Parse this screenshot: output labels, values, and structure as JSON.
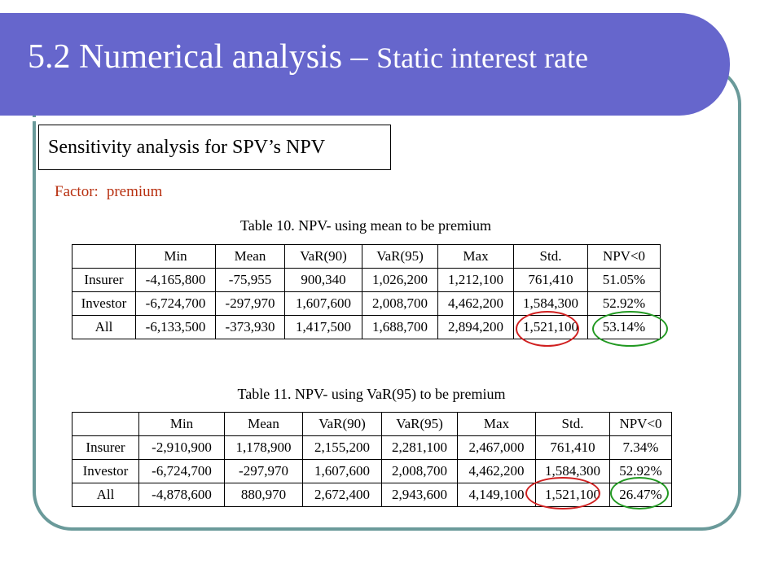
{
  "slide": {
    "title_main": "5.2 Numerical analysis – ",
    "title_sub": "Static interest rate",
    "subtitle": "Sensitivity analysis for SPV’s NPV",
    "factor_label": "Factor:",
    "factor_value": "premium"
  },
  "tables": [
    {
      "caption": "Table 10. NPV- using mean to be premium",
      "headers": [
        "",
        "Min",
        "Mean",
        "VaR(90)",
        "VaR(95)",
        "Max",
        "Std.",
        "NPV<0"
      ],
      "rows": [
        [
          "Insurer",
          "-4,165,800",
          "-75,955",
          "900,340",
          "1,026,200",
          "1,212,100",
          "761,410",
          "51.05%"
        ],
        [
          "Investor",
          "-6,724,700",
          "-297,970",
          "1,607,600",
          "2,008,700",
          "4,462,200",
          "1,584,300",
          "52.92%"
        ],
        [
          "All",
          "-6,133,500",
          "-373,930",
          "1,417,500",
          "1,688,700",
          "2,894,200",
          "1,521,100",
          "53.14%"
        ]
      ]
    },
    {
      "caption": "Table 11. NPV- using VaR(95) to be premium",
      "headers": [
        "",
        "Min",
        "Mean",
        "VaR(90)",
        "VaR(95)",
        "Max",
        "Std.",
        "NPV<0"
      ],
      "rows": [
        [
          "Insurer",
          "-2,910,900",
          "1,178,900",
          "2,155,200",
          "2,281,100",
          "2,467,000",
          "761,410",
          "7.34%"
        ],
        [
          "Investor",
          "-6,724,700",
          "-297,970",
          "1,607,600",
          "2,008,700",
          "4,462,200",
          "1,584,300",
          "52.92%"
        ],
        [
          "All",
          "-4,878,600",
          "880,970",
          "2,672,400",
          "2,943,600",
          "4,149,100",
          "1,521,100",
          "26.47%"
        ]
      ]
    }
  ],
  "highlight_colors": {
    "std_circle": "#d02020",
    "npv_circle": "#229922"
  }
}
